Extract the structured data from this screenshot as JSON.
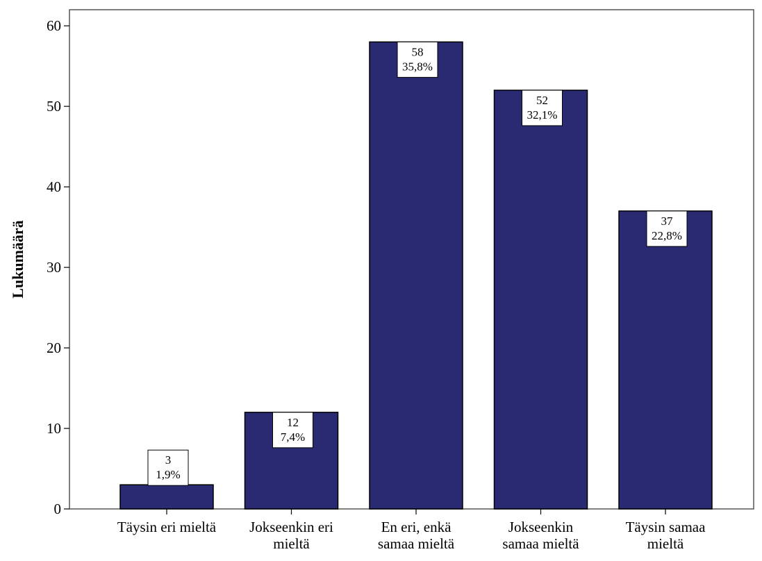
{
  "chart_data": {
    "type": "bar",
    "categories": [
      [
        "Täysin eri mieltä"
      ],
      [
        "Jokseenkin eri",
        "mieltä"
      ],
      [
        "En eri, enkä",
        "samaa mieltä"
      ],
      [
        "Jokseenkin",
        "samaa mieltä"
      ],
      [
        "Täysin samaa",
        "mieltä"
      ]
    ],
    "values": [
      3,
      12,
      58,
      52,
      37
    ],
    "percent_labels": [
      "1,9%",
      "7,4%",
      "35,8%",
      "32,1%",
      "22,8%"
    ],
    "ylabel": "Lukumäärä",
    "xlabel": "",
    "ylim": [
      0,
      62
    ],
    "yticks": [
      0,
      10,
      20,
      30,
      40,
      50,
      60
    ],
    "grid": false,
    "legend": "none",
    "colors": {
      "bar": "#2a2a72",
      "bar_edge": "#000000",
      "label_box": "#ffffff",
      "axis": "#555555"
    }
  }
}
